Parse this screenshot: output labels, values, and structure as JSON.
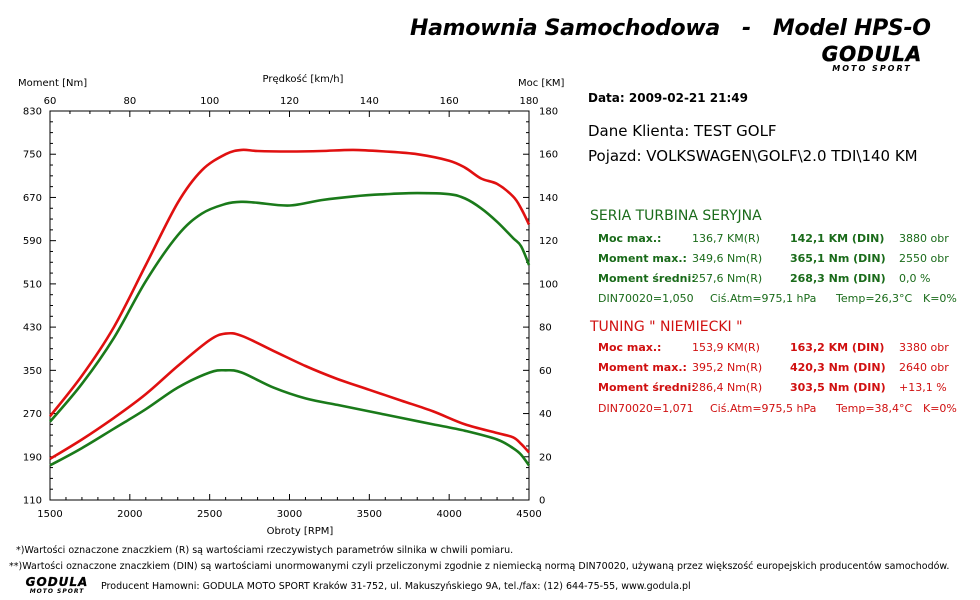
{
  "title": "Hamownia Samochodowa   -   Model HPS-O",
  "logo": {
    "word": "GODULA",
    "sub": "MOTO SPORT"
  },
  "chart_data": {
    "type": "line",
    "title": "",
    "xlabel": "Obroty [RPM]",
    "x_range": [
      1500,
      4500
    ],
    "x_ticks": [
      1500,
      2000,
      2500,
      3000,
      3500,
      4000,
      4500
    ],
    "top_xlabel": "Prędkość [km/h]",
    "top_x_range": [
      60,
      180
    ],
    "top_x_ticks": [
      60,
      80,
      100,
      120,
      140,
      160,
      180
    ],
    "left_ylabel": "Moment [Nm]",
    "left_y_range": [
      110,
      830
    ],
    "left_y_ticks": [
      110,
      190,
      270,
      350,
      430,
      510,
      590,
      670,
      750,
      830
    ],
    "right_ylabel": "Moc [KM]",
    "right_y_range": [
      0,
      180
    ],
    "right_y_ticks": [
      0,
      20,
      40,
      60,
      80,
      100,
      120,
      140,
      160,
      180
    ],
    "grid": false,
    "series": [
      {
        "axis": "left",
        "color": "#e01010",
        "x": [
          1500,
          1700,
          1900,
          2100,
          2300,
          2450,
          2600,
          2700,
          2800,
          3000,
          3200,
          3400,
          3600,
          3800,
          4000,
          4100,
          4200,
          4300,
          4400,
          4450,
          4500
        ],
        "y": [
          265,
          340,
          430,
          545,
          660,
          720,
          750,
          758,
          756,
          755,
          756,
          758,
          755,
          750,
          738,
          725,
          705,
          695,
          672,
          650,
          620
        ]
      },
      {
        "axis": "left",
        "color": "#1a7a1a",
        "x": [
          1500,
          1700,
          1900,
          2100,
          2300,
          2450,
          2600,
          2700,
          2800,
          3000,
          3200,
          3400,
          3600,
          3800,
          4000,
          4100,
          4200,
          4300,
          4400,
          4450,
          4500
        ],
        "y": [
          255,
          325,
          410,
          515,
          600,
          640,
          658,
          662,
          660,
          655,
          665,
          672,
          676,
          678,
          676,
          668,
          650,
          625,
          595,
          580,
          545
        ]
      },
      {
        "axis": "right",
        "color": "#e01010",
        "x": [
          1500,
          1700,
          1900,
          2100,
          2300,
          2500,
          2600,
          2700,
          2900,
          3100,
          3300,
          3500,
          3700,
          3900,
          4100,
          4300,
          4400,
          4450,
          4500
        ],
        "y": [
          19,
          28,
          38,
          49,
          62,
          74,
          77,
          76,
          69,
          62,
          56,
          51,
          46,
          41,
          35,
          31,
          29,
          26,
          22
        ]
      },
      {
        "axis": "right",
        "color": "#1a7a1a",
        "x": [
          1500,
          1700,
          1900,
          2100,
          2300,
          2500,
          2600,
          2700,
          2900,
          3100,
          3300,
          3500,
          3700,
          3900,
          4100,
          4300,
          4400,
          4450,
          4500
        ],
        "y": [
          16,
          24,
          33,
          42,
          52,
          59,
          60,
          59,
          52,
          47,
          44,
          41,
          38,
          35,
          32,
          28,
          24,
          21,
          16
        ]
      }
    ]
  },
  "info": {
    "date": "Data: 2009-02-21  21:49",
    "client": "Dane Klienta: TEST  GOLF",
    "vehicle": "Pojazd: VOLKSWAGEN\\GOLF\\2.0 TDI\\140 KM",
    "serial": {
      "title": "SERIA TURBINA SERYJNA",
      "rows": [
        {
          "label": "Moc max.:",
          "r": "136,7 KM(R)",
          "din": "142,1 KM (DIN)",
          "extra": "3880 obr"
        },
        {
          "label": "Moment max.:",
          "r": "349,6 Nm(R)",
          "din": "365,1 Nm (DIN)",
          "extra": "2550 obr"
        },
        {
          "label": "Moment średni:",
          "r": "257,6 Nm(R)",
          "din": "268,3 Nm (DIN)",
          "extra": "0,0 %"
        }
      ],
      "foot": {
        "din": "DIN70020=1,050",
        "atm": "Ciś.Atm=975,1 hPa",
        "temp": "Temp=26,3°C",
        "k": "K=0%"
      }
    },
    "tuning": {
      "title": "TUNING  \" NIEMIECKI \"",
      "rows": [
        {
          "label": "Moc max.:",
          "r": "153,9 KM(R)",
          "din": "163,2 KM (DIN)",
          "extra": "3380 obr"
        },
        {
          "label": "Moment max.:",
          "r": "395,2 Nm(R)",
          "din": "420,3 Nm (DIN)",
          "extra": "2640 obr"
        },
        {
          "label": "Moment średni:",
          "r": "286,4 Nm(R)",
          "din": "303,5 Nm (DIN)",
          "extra": "+13,1 %"
        }
      ],
      "foot": {
        "din": "DIN70020=1,071",
        "atm": "Ciś.Atm=975,5 hPa",
        "temp": "Temp=38,4°C",
        "k": "K=0%"
      }
    }
  },
  "footnotes": {
    "note1": "*)Wartości oznaczone znaczkiem (R) są wartościami rzeczywistych parametrów silnika w chwili pomiaru.",
    "note2": "**)Wartości oznaczone znaczkiem (DIN) są wartościami unormowanymi czyli przeliczonymi zgodnie z niemiecką normą DIN70020, używaną przez większość europejskich producentów samochodów.",
    "producer": "Producent Hamowni: GODULA MOTO SPORT Kraków 31-752, ul. Makuszyńskiego 9A, tel./fax: (12) 644-75-55, www.godula.pl"
  }
}
